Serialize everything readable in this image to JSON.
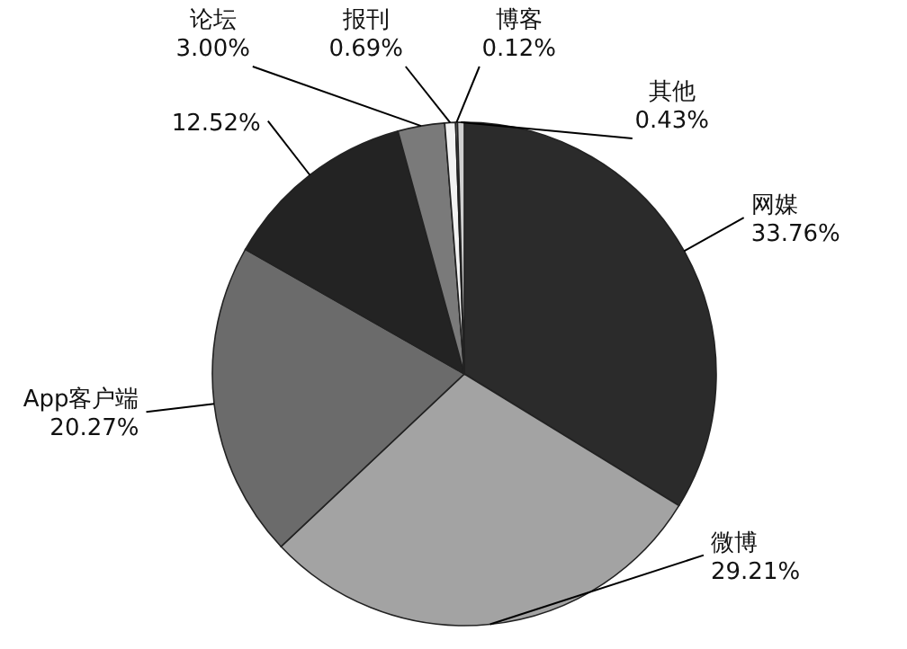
{
  "chart_data": {
    "type": "pie",
    "categories": [
      "网媒",
      "微博",
      "App客户端",
      null,
      "论坛",
      "报刊",
      "博客",
      "其他"
    ],
    "values": [
      33.76,
      29.21,
      20.27,
      12.52,
      3.0,
      0.69,
      0.12,
      0.43
    ],
    "value_labels": [
      "33.76%",
      "29.21%",
      "20.27%",
      "12.52%",
      "3.00%",
      "0.69%",
      "0.12%",
      "0.43%"
    ],
    "colors": [
      "#2b2b2b",
      "#a3a3a3",
      "#6b6b6b",
      "#232323",
      "#7a7a7a",
      "#f2f2f2",
      "#9a9a9a",
      "#cfcfcf"
    ]
  }
}
